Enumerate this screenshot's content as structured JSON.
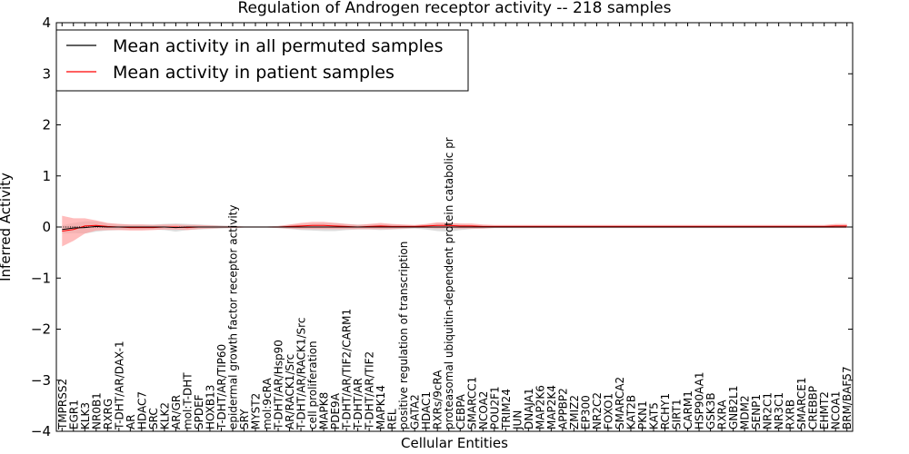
{
  "chart_data": {
    "type": "line",
    "title": "Regulation of Androgen receptor activity -- 218 samples",
    "xlabel": "Cellular Entities",
    "ylabel": "Inferred Activity",
    "ylim": [
      -4,
      4
    ],
    "yticks": [
      "−4",
      "−3",
      "−2",
      "−1",
      "0",
      "1",
      "2",
      "3",
      "4"
    ],
    "grid": false,
    "legend_placement": "top-left",
    "colors": {
      "permuted": "#000000",
      "patient": "#ff0000",
      "patient_band": "#ff9a9a",
      "permuted_band": "#c8c8c8"
    },
    "categories": [
      "TMPRSS2",
      "EGR1",
      "KLK3",
      "NR0B1",
      "RXRG",
      "T-DHT/AR/DAX-1",
      "AR",
      "HDAC7",
      "SRC",
      "KLK2",
      "AR/GR",
      "mol:T-DHT",
      "SPDEF",
      "HOXB13",
      "T-DHT/AR/TIP60",
      "epidermal growth factor receptor activity",
      "SRY",
      "MYST2",
      "mol:9cRA",
      "T-DHT/AR/Hsp90",
      "AR/RACK1/Src",
      "T-DHT/AR/RACK1/Src",
      "cell proliferation",
      "MAPK8",
      "PDE9A",
      "T-DHT/AR/TIF2/CARM1",
      "T-DHT/AR",
      "T-DHT/AR/TIF2",
      "MAPK14",
      "REL",
      "positive regulation of transcription",
      "GATA2",
      "HDAC1",
      "RXRs/9cRA",
      "proteasomal ubiquitin-dependent protein catabolic pr",
      "CEBPA",
      "SMARCC1",
      "NCOA2",
      "POU2F1",
      "TRIM24",
      "JUN",
      "DNAJA1",
      "MAP2K6",
      "MAP2K4",
      "APPBP2",
      "ZMIZ2",
      "EP300",
      "NR2C2",
      "FOXO1",
      "SMARCA2",
      "KAT2B",
      "PKN1",
      "KAT5",
      "RCHY1",
      "SIRT1",
      "CARM1",
      "HSP90AA1",
      "GSK3B",
      "RXRA",
      "GNB2L1",
      "MDM2",
      "SENP1",
      "NR2C1",
      "NR3C1",
      "RXRB",
      "SMARCE1",
      "CREBBP",
      "EHMT2",
      "NCOA1",
      "BRM/BAF57"
    ],
    "series": [
      {
        "name": "Mean activity in all permuted samples",
        "values": [
          -0.05,
          -0.02,
          -0.01,
          0.01,
          0.0,
          0.0,
          0.0,
          0.0,
          0.0,
          0.0,
          -0.01,
          0.0,
          0.0,
          0.0,
          0.0,
          0.0,
          0.0,
          0.0,
          0.0,
          0.0,
          0.0,
          0.0,
          0.0,
          0.0,
          0.0,
          0.0,
          0.0,
          0.0,
          0.0,
          0.0,
          0.0,
          0.0,
          0.0,
          0.0,
          0.0,
          0.0,
          0.0,
          0.0,
          0.0,
          0.0,
          0.0,
          0.0,
          0.0,
          0.0,
          0.0,
          0.0,
          0.0,
          0.0,
          0.0,
          0.0,
          0.0,
          0.0,
          0.0,
          0.0,
          0.0,
          0.0,
          0.0,
          0.0,
          0.0,
          0.0,
          0.0,
          0.0,
          0.0,
          0.0,
          0.0,
          0.0,
          0.0,
          0.0,
          0.0,
          0.0
        ],
        "spread": [
          0.08,
          0.1,
          0.12,
          0.1,
          0.07,
          0.06,
          0.05,
          0.05,
          0.05,
          0.06,
          0.08,
          0.06,
          0.05,
          0.04,
          0.03,
          0.02,
          0.01,
          0.01,
          0.01,
          0.02,
          0.04,
          0.06,
          0.07,
          0.08,
          0.08,
          0.06,
          0.05,
          0.05,
          0.06,
          0.05,
          0.04,
          0.03,
          0.05,
          0.08,
          0.09,
          0.06,
          0.04,
          0.03,
          0.02,
          0.02,
          0.02,
          0.02,
          0.02,
          0.02,
          0.02,
          0.02,
          0.02,
          0.02,
          0.02,
          0.02,
          0.02,
          0.02,
          0.02,
          0.02,
          0.02,
          0.02,
          0.02,
          0.02,
          0.02,
          0.02,
          0.02,
          0.02,
          0.02,
          0.02,
          0.02,
          0.02,
          0.02,
          0.02,
          0.02,
          0.02
        ]
      },
      {
        "name": "Mean activity in patient samples",
        "values": [
          -0.08,
          -0.05,
          0.02,
          0.03,
          0.01,
          0.0,
          -0.01,
          -0.01,
          -0.01,
          0.0,
          0.0,
          -0.01,
          0.0,
          0.0,
          0.0,
          0.0,
          0.0,
          0.0,
          0.0,
          0.0,
          0.01,
          0.02,
          0.03,
          0.03,
          0.02,
          0.01,
          0.0,
          0.01,
          0.02,
          0.01,
          0.01,
          0.01,
          0.02,
          0.03,
          0.03,
          0.02,
          0.02,
          0.01,
          0.01,
          0.01,
          0.01,
          0.01,
          0.01,
          0.01,
          0.01,
          0.01,
          0.01,
          0.01,
          0.01,
          0.01,
          0.01,
          0.01,
          0.01,
          0.01,
          0.01,
          0.01,
          0.01,
          0.01,
          0.01,
          0.01,
          0.01,
          0.01,
          0.01,
          0.01,
          0.01,
          0.01,
          0.01,
          0.01,
          0.02,
          0.02
        ],
        "spread": [
          0.3,
          0.22,
          0.15,
          0.1,
          0.07,
          0.06,
          0.06,
          0.06,
          0.05,
          0.05,
          0.05,
          0.05,
          0.04,
          0.03,
          0.02,
          0.02,
          0.01,
          0.01,
          0.01,
          0.02,
          0.04,
          0.06,
          0.07,
          0.07,
          0.06,
          0.05,
          0.04,
          0.05,
          0.06,
          0.05,
          0.04,
          0.03,
          0.04,
          0.06,
          0.05,
          0.05,
          0.05,
          0.04,
          0.03,
          0.03,
          0.03,
          0.03,
          0.03,
          0.03,
          0.03,
          0.03,
          0.03,
          0.03,
          0.03,
          0.03,
          0.03,
          0.03,
          0.03,
          0.03,
          0.03,
          0.03,
          0.03,
          0.03,
          0.03,
          0.03,
          0.03,
          0.03,
          0.03,
          0.03,
          0.03,
          0.03,
          0.03,
          0.03,
          0.04,
          0.04
        ]
      }
    ]
  }
}
